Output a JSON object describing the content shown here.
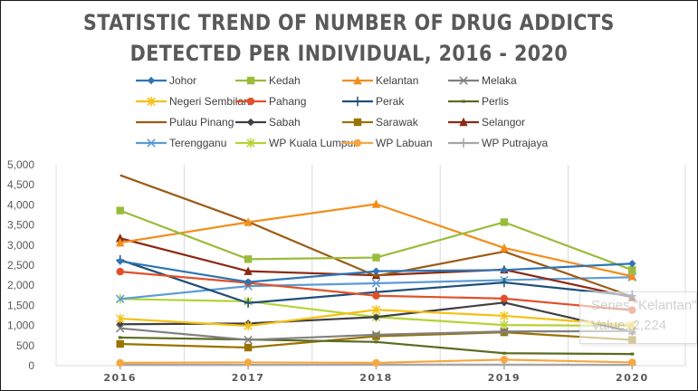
{
  "chart_data": {
    "type": "line",
    "title_lines": [
      "STATISTIC TREND OF NUMBER OF DRUG ADDICTS",
      "DETECTED PER INDIVIDUAL, 2016 - 2020"
    ],
    "xlabel": "",
    "ylabel": "",
    "x": [
      "2016",
      "2017",
      "2018",
      "2019",
      "2020"
    ],
    "ylim": [
      0,
      5000
    ],
    "yticks": [
      0,
      500,
      1000,
      1500,
      2000,
      2500,
      3000,
      3500,
      4000,
      4500,
      5000
    ],
    "ytick_labels": [
      "0",
      "500",
      "1,000",
      "1,500",
      "2,000",
      "2,500",
      "3,000",
      "3,500",
      "4,000",
      "4,500",
      "5,000"
    ],
    "grid": "vertical",
    "legend_position": "top",
    "series": [
      {
        "name": "Johor",
        "color": "#2E75B6",
        "marker": "diamond",
        "values": [
          2600,
          2080,
          2350,
          2380,
          2540
        ]
      },
      {
        "name": "Kedah",
        "color": "#9BBB3B",
        "marker": "square",
        "values": [
          3860,
          2650,
          2690,
          3570,
          2380
        ]
      },
      {
        "name": "Kelantan",
        "color": "#F28E1C",
        "marker": "triangle",
        "values": [
          3060,
          3570,
          4020,
          2930,
          2224
        ]
      },
      {
        "name": "Melaka",
        "color": "#808080",
        "marker": "x",
        "values": [
          930,
          640,
          770,
          850,
          860
        ]
      },
      {
        "name": "Negeri Sembilan",
        "color": "#F5C011",
        "marker": "star",
        "values": [
          1170,
          990,
          1390,
          1240,
          1000
        ]
      },
      {
        "name": "Pahang",
        "color": "#E0502A",
        "marker": "circle",
        "values": [
          2340,
          2060,
          1740,
          1670,
          1380
        ]
      },
      {
        "name": "Perak",
        "color": "#1F4E79",
        "marker": "plus",
        "values": [
          2630,
          1560,
          1830,
          2070,
          1740
        ]
      },
      {
        "name": "Perlis",
        "color": "#5B6B1F",
        "marker": "dash",
        "values": [
          700,
          650,
          590,
          310,
          290
        ]
      },
      {
        "name": "Pulau Pinang",
        "color": "#9C5B14",
        "marker": "none",
        "values": [
          4740,
          3580,
          2230,
          2840,
          1720
        ]
      },
      {
        "name": "Sabah",
        "color": "#404040",
        "marker": "diamond",
        "values": [
          1030,
          1050,
          1210,
          1570,
          840
        ]
      },
      {
        "name": "Sarawak",
        "color": "#997300",
        "marker": "square",
        "values": [
          540,
          450,
          730,
          830,
          640
        ]
      },
      {
        "name": "Selangor",
        "color": "#8B2A14",
        "marker": "triangle",
        "values": [
          3170,
          2350,
          2250,
          2390,
          1700
        ]
      },
      {
        "name": "Terengganu",
        "color": "#5B9BD5",
        "marker": "x",
        "values": [
          1660,
          1980,
          2050,
          2130,
          2200
        ]
      },
      {
        "name": "WP Kuala Lumpur",
        "color": "#B5D334",
        "marker": "star",
        "values": [
          1660,
          1600,
          1210,
          1010,
          990
        ]
      },
      {
        "name": "WP Labuan",
        "color": "#F5A742",
        "marker": "circle",
        "values": [
          70,
          80,
          70,
          150,
          80
        ]
      },
      {
        "name": "WP Putrajaya",
        "color": "#A6A6A6",
        "marker": "plus",
        "values": [
          20,
          20,
          25,
          25,
          20
        ]
      }
    ],
    "tooltip": {
      "line1": "Series \"Kelantan\"",
      "line2": "Value: 2,224"
    }
  }
}
